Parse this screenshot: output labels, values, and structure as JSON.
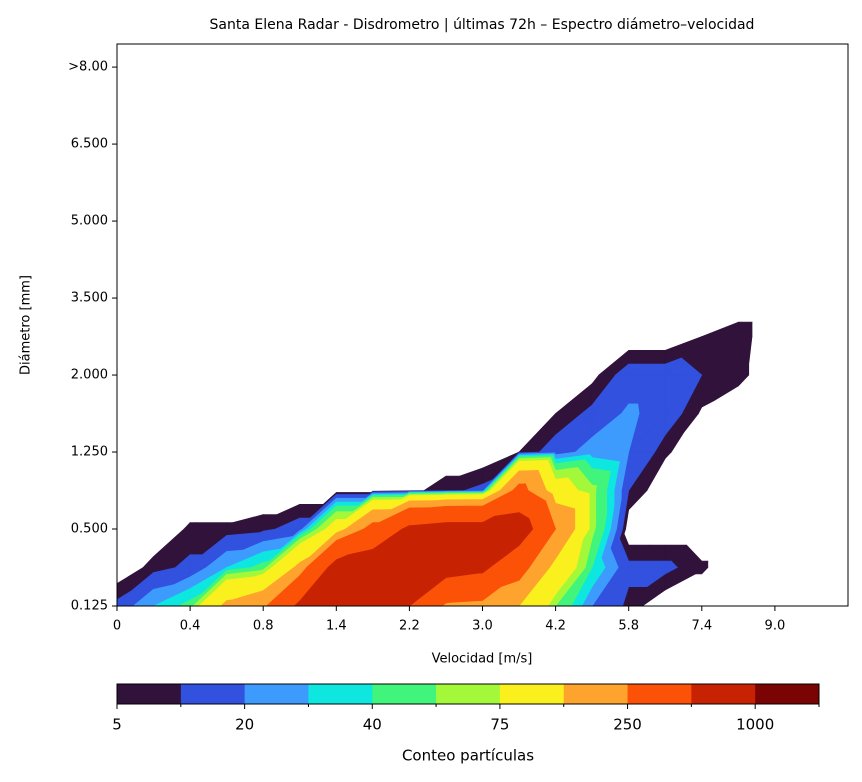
{
  "chart_data": {
    "type": "contourf",
    "title": "Santa Elena Radar - Disdrometro | últimas 72h – Espectro diámetro–velocidad",
    "x_label": "Velocidad [m/s]",
    "y_label": "Diámetro [mm]",
    "xlim": [
      0,
      10
    ],
    "ylim": [
      0,
      7.3
    ],
    "xticks": [
      0,
      {
        "value": 1,
        "label": "0.4"
      },
      {
        "value": 2,
        "label": "0.8"
      },
      {
        "value": 3,
        "label": "1.4"
      },
      {
        "value": 4,
        "label": "2.2"
      },
      {
        "value": 5,
        "label": "3.0"
      },
      {
        "value": 6,
        "label": "4.2"
      },
      {
        "value": 7,
        "label": "5.8"
      },
      {
        "value": 8,
        "label": "7.4"
      },
      {
        "value": 9,
        "label": "9.0"
      }
    ],
    "yticks": [
      {
        "value": 0,
        "label": "0.125"
      },
      {
        "value": 1,
        "label": "0.500"
      },
      {
        "value": 2,
        "label": "1.250"
      },
      {
        "value": 3,
        "label": "2.000"
      },
      {
        "value": 4,
        "label": "3.500"
      },
      {
        "value": 5,
        "label": "5.000"
      },
      {
        "value": 6,
        "label": "6.500"
      },
      {
        "value": 7,
        "label": ">8.00"
      }
    ],
    "x": [
      0,
      0.5,
      1,
      1.5,
      2,
      2.5,
      3,
      3.5,
      4,
      4.5,
      5,
      5.5,
      6,
      6.5,
      7,
      7.5,
      8,
      8.5,
      9,
      9.5,
      10
    ],
    "y": [
      0,
      0.5,
      1,
      1.5,
      2,
      2.5,
      3,
      3.5,
      4
    ],
    "z": [
      [
        12,
        30,
        45,
        170,
        220,
        550,
        650,
        700,
        500,
        220,
        200,
        150,
        55,
        20,
        8,
        0,
        0,
        0,
        0,
        0,
        0
      ],
      [
        0,
        7,
        12,
        30,
        45,
        170,
        600,
        680,
        700,
        600,
        550,
        300,
        120,
        40,
        12,
        12,
        6,
        0,
        0,
        0,
        0
      ],
      [
        0,
        0,
        6,
        6,
        8,
        14,
        100,
        300,
        550,
        600,
        600,
        650,
        250,
        60,
        0,
        0,
        0,
        0,
        0,
        0,
        0
      ],
      [
        0,
        0,
        0,
        0,
        0,
        0,
        0,
        0,
        3,
        8,
        12,
        300,
        100,
        60,
        10,
        0,
        0,
        0,
        0,
        0,
        0
      ],
      [
        0,
        0,
        0,
        0,
        0,
        0,
        0,
        0,
        0,
        0,
        0,
        5,
        14,
        25,
        20,
        6,
        0,
        0,
        0,
        0,
        0
      ],
      [
        0,
        0,
        0,
        0,
        0,
        0,
        0,
        0,
        0,
        0,
        0,
        0,
        5,
        12,
        22,
        15,
        4,
        0,
        0,
        0,
        0
      ],
      [
        0,
        0,
        0,
        0,
        0,
        0,
        0,
        0,
        0,
        0,
        0,
        0,
        0,
        3,
        14,
        14,
        10,
        7,
        0,
        0,
        0
      ],
      [
        0,
        0,
        0,
        0,
        0,
        0,
        0,
        0,
        0,
        0,
        0,
        0,
        0,
        0,
        0,
        0,
        5,
        8,
        0,
        0,
        0
      ],
      [
        0,
        0,
        0,
        0,
        0,
        0,
        0,
        0,
        0,
        0,
        0,
        0,
        0,
        0,
        0,
        0,
        0,
        0,
        0,
        0,
        0
      ]
    ],
    "levels": [
      5,
      10,
      20,
      30,
      40,
      55,
      75,
      150,
      250,
      500,
      1000,
      2000
    ],
    "colors": [
      "#30123b",
      "#3151de",
      "#3e9bfe",
      "#0ee6e0",
      "#40f47c",
      "#a4f83a",
      "#faf01e",
      "#fea32e",
      "#fb5207",
      "#c72302",
      "#7a0403"
    ],
    "colorbar_label": "Conteo partículas",
    "colorbar_ticks": [
      5,
      20,
      40,
      75,
      250,
      1000
    ]
  }
}
